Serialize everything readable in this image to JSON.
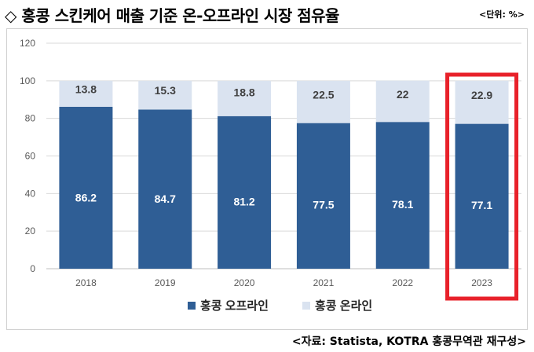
{
  "header": {
    "title": "◇ 홍콩 스킨케어 매출 기준 온-오프라인 시장 점유율",
    "unit": "<단위: %>"
  },
  "footer": {
    "source": "<자료: Statista, KOTRA 홍콩무역관 재구성>"
  },
  "chart_data": {
    "type": "bar",
    "stacked": true,
    "categories": [
      "2018",
      "2019",
      "2020",
      "2021",
      "2022",
      "2023"
    ],
    "series": [
      {
        "name": "홍콩 오프라인",
        "values": [
          86.2,
          84.7,
          81.2,
          77.5,
          78.1,
          77.1
        ],
        "color": "#2F5E95"
      },
      {
        "name": "홍콩 온라인",
        "values": [
          13.8,
          15.3,
          18.8,
          22.5,
          22,
          22.9
        ],
        "color": "#DAE3F0"
      }
    ],
    "ylim": [
      0,
      120
    ],
    "yticks": [
      0,
      20,
      40,
      60,
      80,
      100,
      120
    ],
    "grid": true,
    "legend": "bottom",
    "highlight": {
      "category": "2023",
      "color": "#E8212A"
    }
  }
}
